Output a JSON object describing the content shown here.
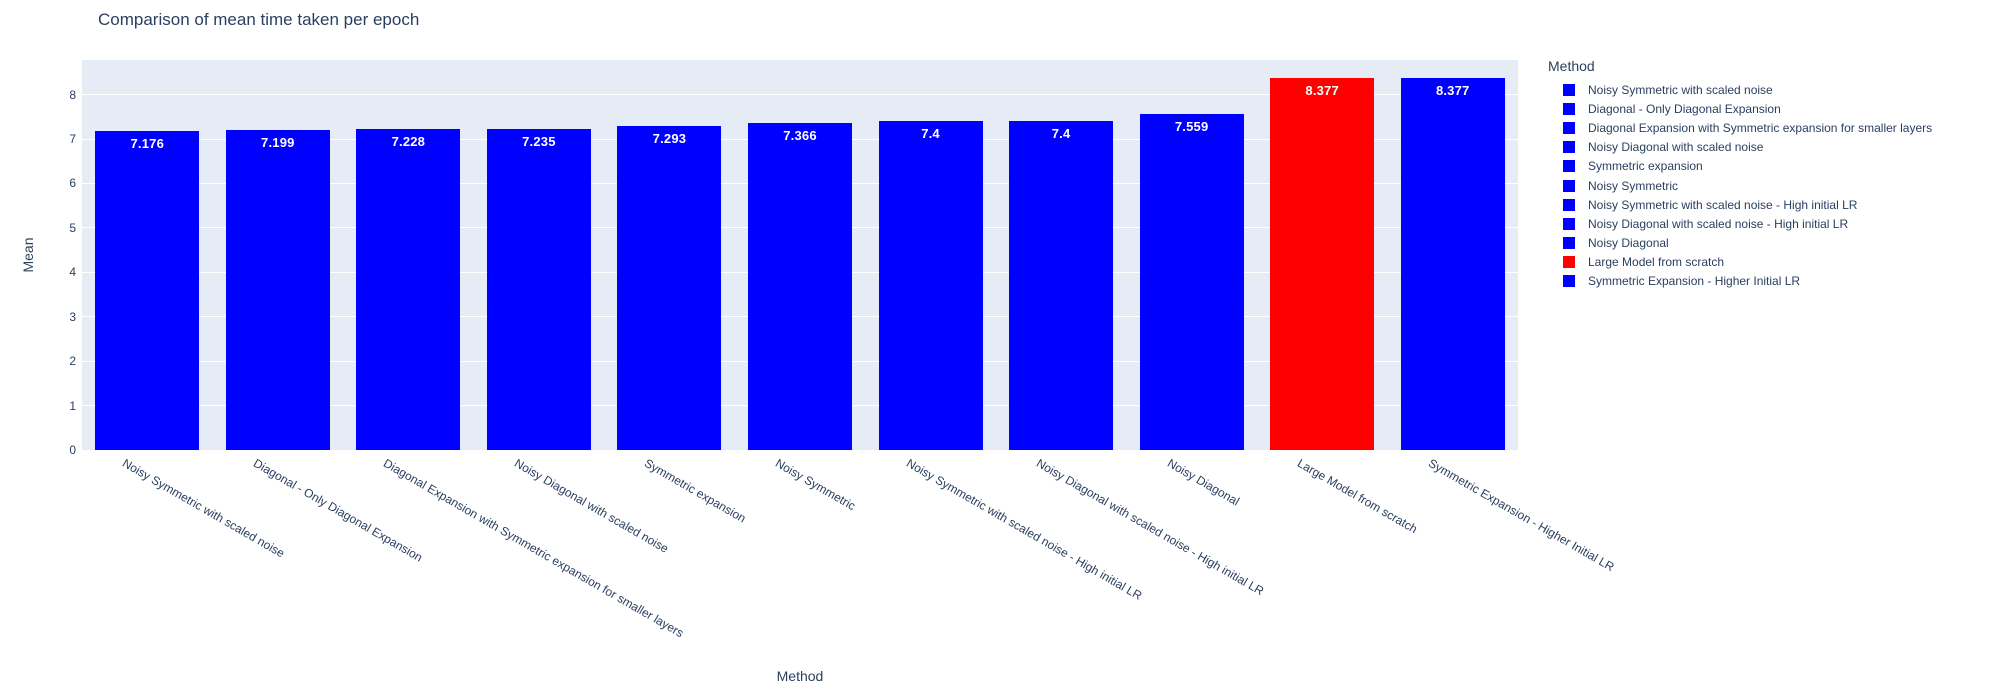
{
  "chart_data": {
    "type": "bar",
    "title": "Comparison of mean time taken per epoch",
    "xlabel": "Method",
    "ylabel": "Mean",
    "legend_title": "Method",
    "legend_position": "right",
    "grid": true,
    "ylim": [
      0,
      8.78
    ],
    "yticks": [
      0,
      1,
      2,
      3,
      4,
      5,
      6,
      7,
      8
    ],
    "categories": [
      "Noisy Symmetric with scaled noise",
      "Diagonal - Only Diagonal Expansion",
      "Diagonal Expansion with Symmetric expansion for smaller layers",
      "Noisy Diagonal with scaled noise",
      "Symmetric expansion",
      "Noisy Symmetric",
      "Noisy Symmetric with scaled noise - High initial LR",
      "Noisy Diagonal with scaled noise - High initial LR",
      "Noisy Diagonal",
      "Large Model from scratch",
      "Symmetric Expansion - Higher Initial LR"
    ],
    "values": [
      7.176,
      7.199,
      7.228,
      7.235,
      7.293,
      7.366,
      7.4,
      7.4,
      7.559,
      8.377,
      8.377
    ],
    "value_labels": [
      "7.176",
      "7.199",
      "7.228",
      "7.235",
      "7.293",
      "7.366",
      "7.4",
      "7.4",
      "7.559",
      "8.377",
      "8.377"
    ],
    "bar_colors": [
      "#0000ff",
      "#0000ff",
      "#0000ff",
      "#0000ff",
      "#0000ff",
      "#0000ff",
      "#0000ff",
      "#0000ff",
      "#0000ff",
      "#ff0000",
      "#0000ff"
    ],
    "colors": {
      "bar_default": "#0000ff",
      "bar_highlight": "#ff0000",
      "plot_background": "#e5ecf6",
      "gridline": "#ffffff",
      "text": "#2a3f5f",
      "bar_label_text": "#ffffff"
    }
  }
}
